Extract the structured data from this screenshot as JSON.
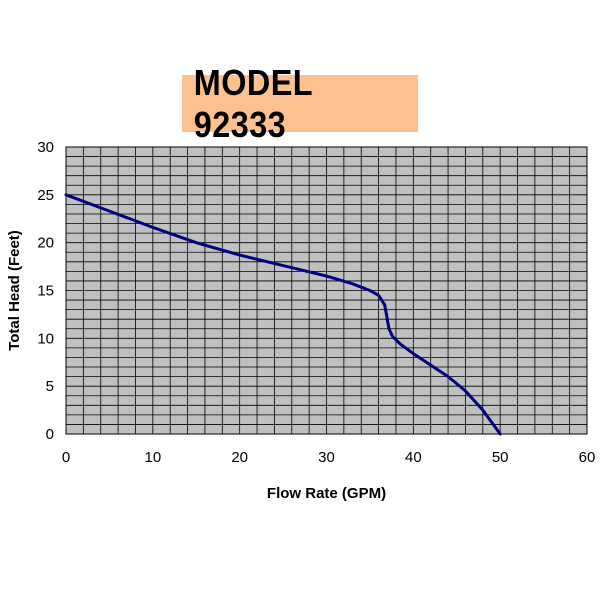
{
  "chart_data": {
    "type": "line",
    "title": "MODEL 92333",
    "xlabel": "Flow Rate (GPM)",
    "ylabel": "Total Head (Feet)",
    "xlim": [
      0,
      60
    ],
    "ylim": [
      0,
      30
    ],
    "x_ticks": [
      0,
      10,
      20,
      30,
      40,
      50,
      60
    ],
    "y_ticks": [
      0,
      5,
      10,
      15,
      20,
      25,
      30
    ],
    "grid": true,
    "legend": "none",
    "colors": {
      "plot_background": "#c0c0c0",
      "grid": "#000000",
      "line": "#000080",
      "title_background": "#fbc28f"
    },
    "series": [
      {
        "values": [
          [
            0,
            25
          ],
          [
            5,
            23.3
          ],
          [
            10,
            21.6
          ],
          [
            15,
            20
          ],
          [
            20,
            18.7
          ],
          [
            25,
            17.6
          ],
          [
            30,
            16.5
          ],
          [
            33,
            15.7
          ],
          [
            35,
            15
          ],
          [
            36,
            14.5
          ],
          [
            36.7,
            13.5
          ],
          [
            37.2,
            11
          ],
          [
            37.6,
            10.2
          ],
          [
            38.5,
            9.4
          ],
          [
            40,
            8.4
          ],
          [
            42,
            7.2
          ],
          [
            44,
            6
          ],
          [
            46,
            4.5
          ],
          [
            48,
            2.5
          ],
          [
            50,
            0
          ]
        ]
      }
    ]
  }
}
